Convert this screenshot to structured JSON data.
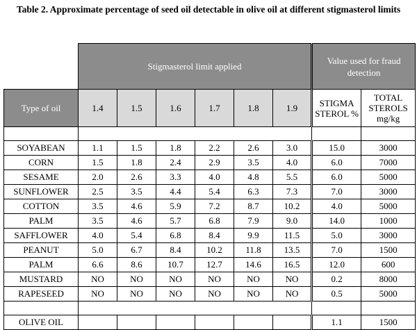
{
  "title": "Table 2. Approximate percentage of seed oil detectable in olive oil at different stigmasterol limits",
  "header": {
    "group_stigmasterol": "Stigmasterol limit applied",
    "group_fraud": "Value used for fraud detection",
    "type_of_oil": "Type of oil",
    "limits": [
      "1.4",
      "1.5",
      "1.6",
      "1.7",
      "1.8",
      "1.9"
    ],
    "stigma_col": "STIGMA STEROL %",
    "total_col": "TOTAL STEROLS mg/kg"
  },
  "rows": [
    {
      "oil": "SOYABEAN",
      "v": [
        "1.1",
        "1.5",
        "1.8",
        "2.2",
        "2.6",
        "3.0"
      ],
      "stigma": "15.0",
      "total": "3000"
    },
    {
      "oil": "CORN",
      "v": [
        "1.5",
        "1.8",
        "2.4",
        "2.9",
        "3.5",
        "4.0"
      ],
      "stigma": "6.0",
      "total": "7000"
    },
    {
      "oil": "SESAME",
      "v": [
        "2.0",
        "2.6",
        "3.3",
        "4.0",
        "4.8",
        "5.5"
      ],
      "stigma": "6.0",
      "total": "5000"
    },
    {
      "oil": "SUNFLOWER",
      "v": [
        "2.5",
        "3.5",
        "4.4",
        "5.4",
        "6.3",
        "7.3"
      ],
      "stigma": "7.0",
      "total": "3000"
    },
    {
      "oil": "COTTON",
      "v": [
        "3.5",
        "4.6",
        "5.9",
        "7.2",
        "8.7",
        "10.2"
      ],
      "stigma": "4.0",
      "total": "5000"
    },
    {
      "oil": "PALM",
      "v": [
        "3.5",
        "4.6",
        "5.7",
        "6.8",
        "7.9",
        "9.0"
      ],
      "stigma": "14.0",
      "total": "1000"
    },
    {
      "oil": "SAFFLOWER",
      "v": [
        "4.0",
        "5.4",
        "6.8",
        "8.4",
        "9.9",
        "11.5"
      ],
      "stigma": "5.0",
      "total": "3000"
    },
    {
      "oil": "PEANUT",
      "v": [
        "5.0",
        "6.7",
        "8.4",
        "10.2",
        "11.8",
        "13.5"
      ],
      "stigma": "7.0",
      "total": "1500"
    },
    {
      "oil": "PALM",
      "v": [
        "6.6",
        "8.6",
        "10.7",
        "12.7",
        "14.6",
        "16.5"
      ],
      "stigma": "12.0",
      "total": "600"
    },
    {
      "oil": "MUSTARD",
      "v": [
        "NO",
        "NO",
        "NO",
        "NO",
        "NO",
        "NO"
      ],
      "stigma": "0.2",
      "total": "8000"
    },
    {
      "oil": "RAPESEED",
      "v": [
        "NO",
        "NO",
        "NO",
        "NO",
        "NO",
        "NO"
      ],
      "stigma": "0.5",
      "total": "5000"
    }
  ],
  "olive": {
    "oil": "OLIVE OIL",
    "stigma": "1.1",
    "total": "1500"
  }
}
